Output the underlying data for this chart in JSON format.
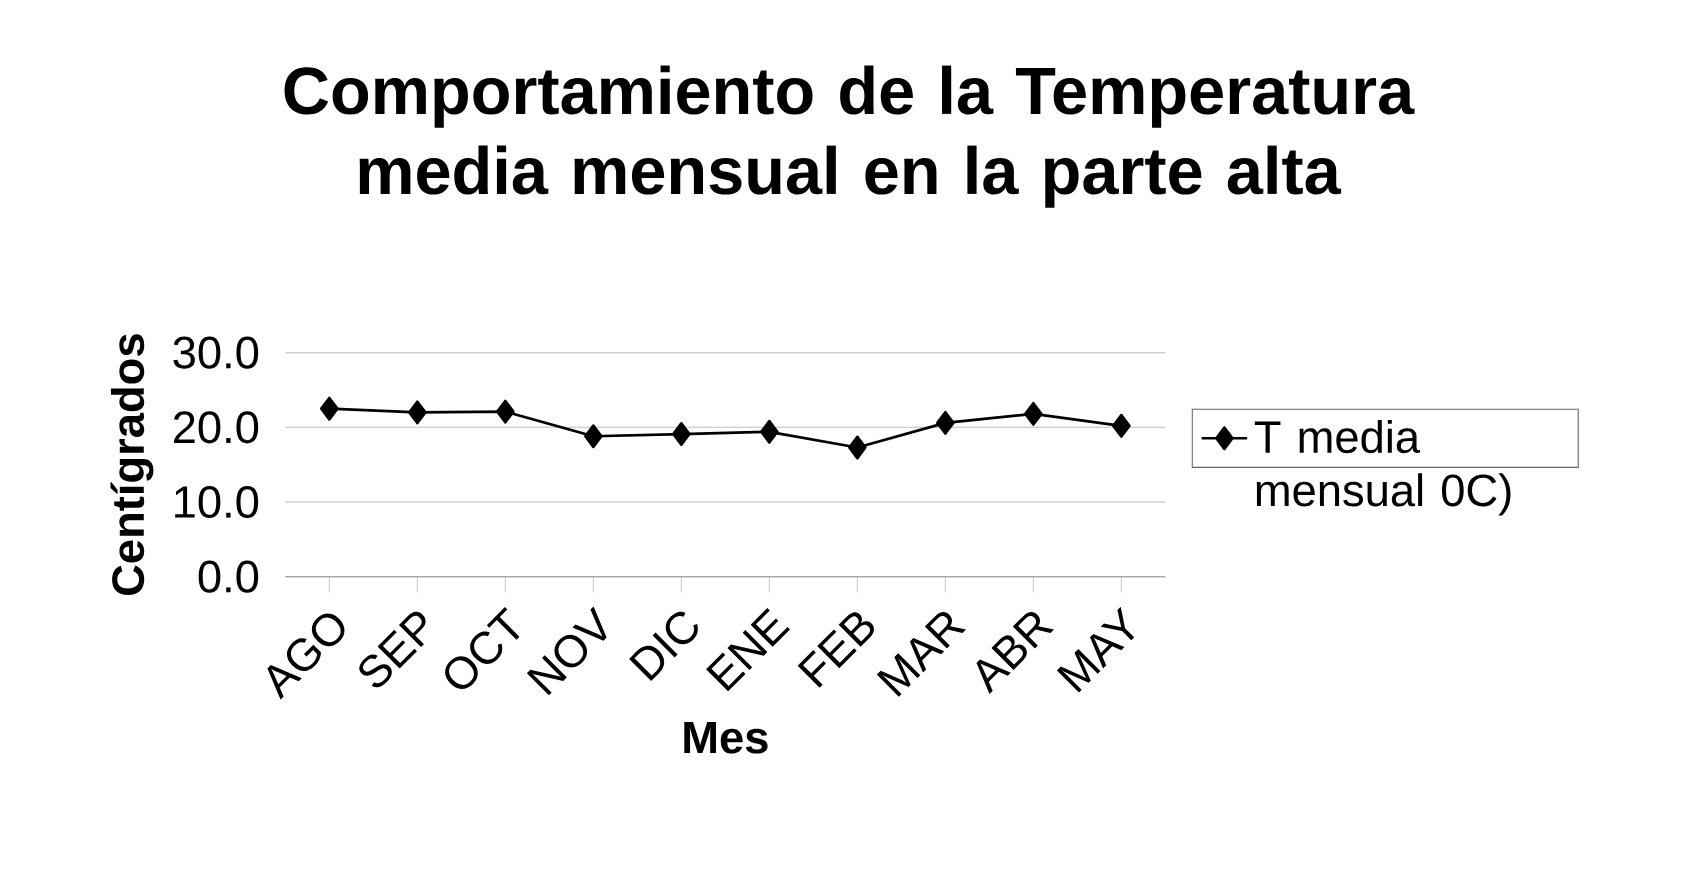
{
  "chart_data": {
    "type": "line",
    "title": "Comportamiento de la Temperatura media mensual en la parte alta",
    "xlabel": "Mes",
    "ylabel": "Centígrados",
    "categories": [
      "AGO",
      "SEP",
      "OCT",
      "NOV",
      "DIC",
      "ENE",
      "FEB",
      "MAR",
      "ABR",
      "MAY"
    ],
    "series": [
      {
        "name": "T media mensual 0C)",
        "color": "#000000",
        "values": [
          22.5,
          22.0,
          22.1,
          18.8,
          19.1,
          19.4,
          17.3,
          20.6,
          21.8,
          20.2
        ]
      }
    ],
    "ylim": [
      0,
      30
    ],
    "yticks": [
      {
        "value": 0,
        "label": "0.0"
      },
      {
        "value": 10,
        "label": "10.0"
      },
      {
        "value": 20,
        "label": "20.0"
      },
      {
        "value": 30,
        "label": "30.0"
      }
    ],
    "grid": "y",
    "legend": "right",
    "marker": "diamond",
    "line_style": "solid"
  }
}
